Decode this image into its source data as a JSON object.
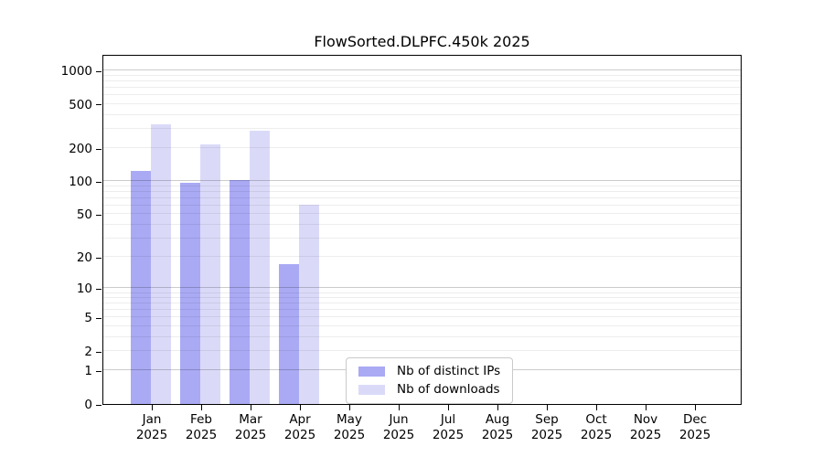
{
  "chart_data": {
    "type": "bar",
    "title": "FlowSorted.DLPFC.450k 2025",
    "categories": [
      "Jan",
      "Feb",
      "Mar",
      "Apr",
      "May",
      "Jun",
      "Jul",
      "Aug",
      "Sep",
      "Oct",
      "Nov",
      "Dec"
    ],
    "x_label_year": "2025",
    "series": [
      {
        "name": "Nb of distinct IPs",
        "color": "#a9a9f4",
        "values": [
          124,
          97,
          102,
          17,
          null,
          null,
          null,
          null,
          null,
          null,
          null,
          null
        ]
      },
      {
        "name": "Nb of downloads",
        "color": "#dadaf8",
        "values": [
          330,
          215,
          290,
          61,
          null,
          null,
          null,
          null,
          null,
          null,
          null,
          null
        ]
      }
    ],
    "y_axis": {
      "scale": "log10(value+1)",
      "ticks": [
        0,
        1,
        2,
        5,
        10,
        20,
        50,
        100,
        200,
        500,
        1000
      ],
      "max_tick": 1000
    },
    "grid": {
      "minor": [
        2,
        3,
        4,
        5,
        6,
        7,
        8,
        9,
        20,
        30,
        40,
        50,
        60,
        70,
        80,
        90,
        200,
        300,
        400,
        500,
        600,
        700,
        800,
        900
      ],
      "major": [
        1,
        10,
        100,
        1000
      ]
    },
    "legend": {
      "entries": [
        "Nb of distinct IPs",
        "Nb of downloads"
      ],
      "position": "bottom-center-inside"
    }
  }
}
